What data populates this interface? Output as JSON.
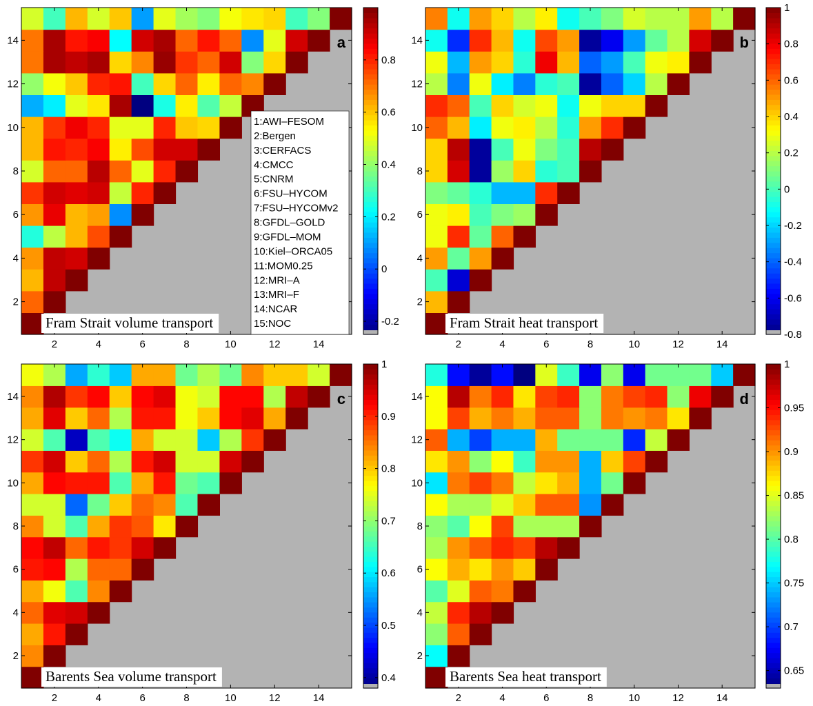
{
  "chart_data": [
    {
      "panel": "a",
      "type": "heatmap",
      "title": "Fram Strait volume transport",
      "x_ticks": [
        "2",
        "4",
        "6",
        "8",
        "10",
        "12",
        "14"
      ],
      "y_ticks": [
        "2",
        "4",
        "6",
        "8",
        "10",
        "12",
        "14"
      ],
      "colorbar": {
        "colormap": "jet",
        "range": [
          -0.25,
          1.0
        ],
        "ticks": [
          "-0.2",
          "0",
          "0.2",
          "0.4",
          "0.6",
          "0.8"
        ]
      },
      "mask_color": "#b3b3b3",
      "diagonal_value": 1.0,
      "legend": [
        "1:AWI–FESOM",
        "2:Bergen",
        "3:CERFACS",
        "4:CMCC",
        "5:CNRM",
        "6:FSU–HYCOM",
        "7:FSU–HYCOMv2",
        "8:GFDL–GOLD",
        "9:GFDL–MOM",
        "10:Kiel–ORCA05",
        "11:MOM0.25",
        "12:MRI–A",
        "13:MRI–F",
        "14:NCAR",
        "15:NOC"
      ],
      "rows": [
        [],
        [
          0.72
        ],
        [
          0.62,
          0.92
        ],
        [
          0.66,
          0.92,
          0.9
        ],
        [
          0.26,
          0.45,
          0.62,
          0.75
        ],
        [
          0.66,
          0.87,
          0.62,
          0.65,
          0.08
        ],
        [
          0.78,
          0.9,
          0.88,
          0.9,
          0.46,
          0.8
        ],
        [
          0.48,
          0.72,
          0.72,
          0.93,
          0.72,
          0.5,
          0.8
        ],
        [
          0.62,
          0.82,
          0.8,
          0.85,
          0.55,
          0.75,
          0.9,
          0.9
        ],
        [
          0.62,
          0.78,
          0.86,
          0.8,
          0.5,
          0.5,
          0.8,
          0.6,
          0.58
        ],
        [
          0.12,
          0.2,
          0.5,
          0.56,
          0.95,
          -0.25,
          0.25,
          0.55,
          0.32,
          0.46
        ],
        [
          0.4,
          0.52,
          0.6,
          0.8,
          0.82,
          0.3,
          0.58,
          0.72,
          0.55,
          0.72,
          0.68
        ],
        [
          0.7,
          0.95,
          0.92,
          0.95,
          0.58,
          0.68,
          0.97,
          0.78,
          0.72,
          0.9,
          0.38,
          0.58
        ],
        [
          0.7,
          0.95,
          0.82,
          0.85,
          0.22,
          0.9,
          0.95,
          0.72,
          0.82,
          0.72,
          0.08,
          0.5,
          0.9
        ],
        [
          0.48,
          0.3,
          0.62,
          0.48,
          0.6,
          0.1,
          0.5,
          0.42,
          0.38,
          0.52,
          0.56,
          0.58,
          0.3,
          0.38
        ]
      ]
    },
    {
      "panel": "b",
      "type": "heatmap",
      "title": "Fram Strait heat transport",
      "x_ticks": [
        "2",
        "4",
        "6",
        "8",
        "10",
        "12",
        "14"
      ],
      "y_ticks": [
        "2",
        "4",
        "6",
        "8",
        "10",
        "12",
        "14"
      ],
      "colorbar": {
        "colormap": "jet",
        "range": [
          -0.8,
          1.0
        ],
        "ticks": [
          "-0.8",
          "-0.6",
          "-0.4",
          "-0.2",
          "0",
          "0.2",
          "0.4",
          "0.6",
          "0.8",
          "1"
        ]
      },
      "mask_color": "#b3b3b3",
      "diagonal_value": 1.0,
      "rows": [
        [],
        [
          0.45
        ],
        [
          0.0,
          -0.65
        ],
        [
          0.5,
          0.05,
          0.5
        ],
        [
          0.3,
          0.7,
          0.05,
          0.6
        ],
        [
          0.3,
          0.35,
          0.0,
          0.1,
          0.15
        ],
        [
          0.1,
          0.05,
          -0.05,
          -0.25,
          -0.25,
          0.7
        ],
        [
          0.4,
          0.85,
          -0.75,
          0.15,
          0.4,
          -0.05,
          0.0
        ],
        [
          0.4,
          0.9,
          -0.75,
          0.0,
          0.3,
          0.1,
          0.0,
          0.9
        ],
        [
          0.6,
          0.45,
          -0.15,
          0.3,
          0.35,
          0.2,
          -0.05,
          0.5,
          0.7
        ],
        [
          0.7,
          0.6,
          0.0,
          0.4,
          0.25,
          0.3,
          -0.1,
          0.3,
          0.4,
          0.4
        ],
        [
          0.2,
          -0.35,
          0.3,
          -0.15,
          -0.35,
          -0.05,
          0.0,
          -0.75,
          -0.4,
          -0.2,
          0.2
        ],
        [
          0.3,
          -0.25,
          0.5,
          0.4,
          -0.05,
          0.8,
          0.45,
          -0.4,
          -0.3,
          0.0,
          0.3,
          0.35
        ],
        [
          -0.1,
          -0.5,
          0.7,
          0.45,
          -0.1,
          0.65,
          0.5,
          -0.75,
          -0.6,
          -0.3,
          0.05,
          0.2,
          0.85
        ],
        [
          0.55,
          -0.1,
          0.5,
          0.4,
          0.2,
          0.35,
          -0.1,
          0.0,
          0.1,
          0.25,
          0.2,
          0.2,
          0.5,
          0.2
        ]
      ]
    },
    {
      "panel": "c",
      "type": "heatmap",
      "title": "Barents Sea volume transport",
      "x_ticks": [
        "2",
        "4",
        "6",
        "8",
        "10",
        "12",
        "14"
      ],
      "y_ticks": [
        "2",
        "4",
        "6",
        "8",
        "10",
        "12",
        "14"
      ],
      "colorbar": {
        "colormap": "jet",
        "range": [
          0.38,
          1.0
        ],
        "ticks": [
          "0.4",
          "0.5",
          "0.6",
          "0.7",
          "0.8",
          "0.9",
          "1"
        ]
      },
      "mask_color": "#b3b3b3",
      "diagonal_value": 1.0,
      "rows": [
        [],
        [
          0.84
        ],
        [
          0.82,
          0.91
        ],
        [
          0.86,
          0.94,
          0.95
        ],
        [
          0.82,
          0.76,
          0.66,
          0.84
        ],
        [
          0.91,
          0.92,
          0.72,
          0.86,
          0.86
        ],
        [
          0.92,
          0.96,
          0.86,
          0.91,
          0.89,
          0.95
        ],
        [
          0.84,
          0.74,
          0.66,
          0.82,
          0.89,
          0.87,
          0.78
        ],
        [
          0.74,
          0.74,
          0.52,
          0.68,
          0.8,
          0.86,
          0.84,
          0.66
        ],
        [
          0.82,
          0.92,
          0.91,
          0.91,
          0.66,
          0.82,
          0.91,
          0.68,
          0.66
        ],
        [
          0.89,
          0.95,
          0.8,
          0.86,
          0.72,
          0.91,
          0.95,
          0.74,
          0.74,
          0.95
        ],
        [
          0.74,
          0.66,
          0.42,
          0.66,
          0.62,
          0.82,
          0.74,
          0.74,
          0.58,
          0.72,
          0.89
        ],
        [
          0.82,
          0.94,
          0.8,
          0.86,
          0.72,
          0.91,
          0.91,
          0.76,
          0.8,
          0.92,
          0.94,
          0.82
        ],
        [
          0.84,
          0.97,
          0.89,
          0.92,
          0.8,
          0.92,
          0.94,
          0.76,
          0.74,
          0.92,
          0.92,
          0.72,
          0.96
        ],
        [
          0.76,
          0.72,
          0.56,
          0.64,
          0.58,
          0.82,
          0.82,
          0.68,
          0.72,
          0.68,
          0.84,
          0.8,
          0.8,
          0.74
        ]
      ]
    },
    {
      "panel": "d",
      "type": "heatmap",
      "title": "Barents Sea heat transport",
      "x_ticks": [
        "2",
        "4",
        "6",
        "8",
        "10",
        "12",
        "14"
      ],
      "y_ticks": [
        "2",
        "4",
        "6",
        "8",
        "10",
        "12",
        "14"
      ],
      "colorbar": {
        "colormap": "jet",
        "range": [
          0.63,
          1.0
        ],
        "ticks": [
          "0.65",
          "0.7",
          "0.75",
          "0.8",
          "0.85",
          "0.9",
          "0.95",
          "1"
        ]
      },
      "mask_color": "#b3b3b3",
      "diagonal_value": 1.0,
      "rows": [
        [],
        [
          0.77
        ],
        [
          0.82,
          0.92
        ],
        [
          0.84,
          0.94,
          0.98
        ],
        [
          0.8,
          0.85,
          0.92,
          0.91
        ],
        [
          0.86,
          0.89,
          0.87,
          0.9,
          0.88
        ],
        [
          0.83,
          0.9,
          0.92,
          0.94,
          0.93,
          0.98
        ],
        [
          0.82,
          0.8,
          0.86,
          0.93,
          0.83,
          0.83,
          0.83
        ],
        [
          0.86,
          0.83,
          0.83,
          0.85,
          0.88,
          0.92,
          0.92,
          0.73
        ],
        [
          0.76,
          0.91,
          0.93,
          0.91,
          0.84,
          0.87,
          0.89,
          0.74,
          0.81
        ],
        [
          0.87,
          0.9,
          0.82,
          0.86,
          0.79,
          0.9,
          0.9,
          0.74,
          0.88,
          0.93
        ],
        [
          0.92,
          0.74,
          0.7,
          0.74,
          0.74,
          0.89,
          0.81,
          0.81,
          0.81,
          0.69,
          0.84
        ],
        [
          0.86,
          0.93,
          0.89,
          0.91,
          0.89,
          0.92,
          0.92,
          0.82,
          0.91,
          0.9,
          0.91,
          0.87
        ],
        [
          0.86,
          0.98,
          0.91,
          0.94,
          0.87,
          0.93,
          0.94,
          0.82,
          0.91,
          0.93,
          0.94,
          0.82,
          0.96
        ],
        [
          0.78,
          0.68,
          0.64,
          0.68,
          0.63,
          0.85,
          0.79,
          0.67,
          0.82,
          0.67,
          0.81,
          0.81,
          0.81,
          0.75
        ]
      ]
    }
  ]
}
